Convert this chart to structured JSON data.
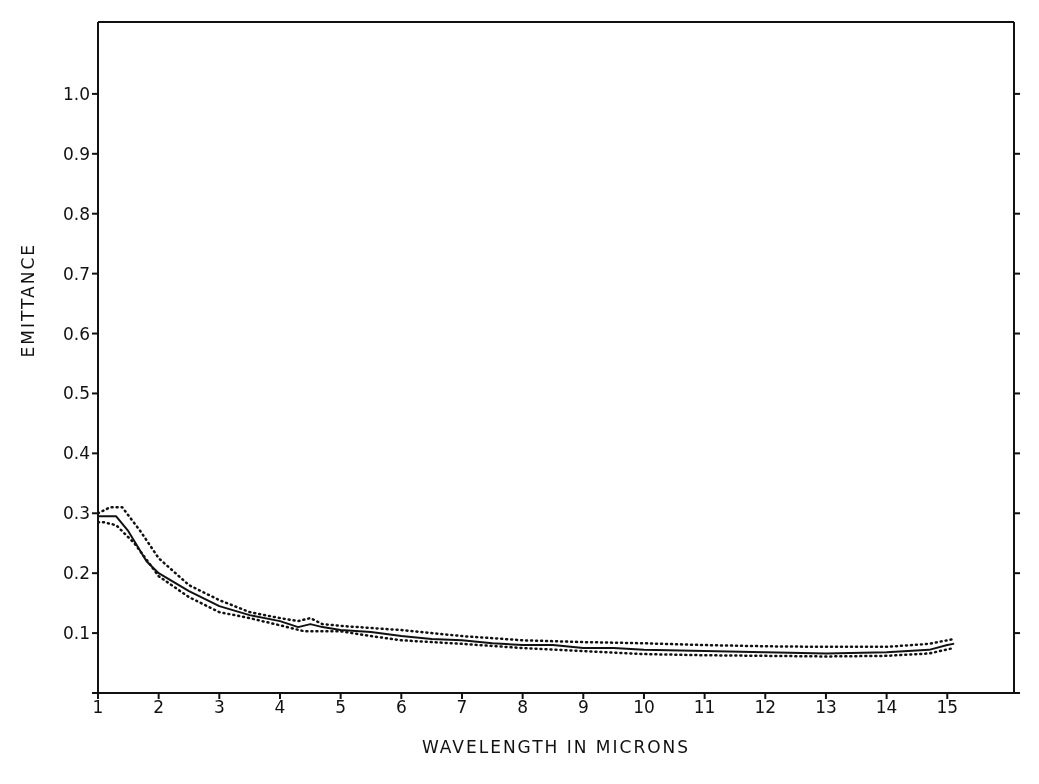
{
  "chart_data": {
    "type": "line",
    "xlabel": "WAVELENGTH IN MICRONS",
    "ylabel": "EMITTANCE",
    "xlim": [
      1,
      16.1
    ],
    "xticks": [
      1,
      2,
      3,
      4,
      5,
      6,
      7,
      8,
      9,
      10,
      11,
      12,
      13,
      14,
      15
    ],
    "ylim": [
      0,
      1.12
    ],
    "yticks": [
      {
        "value": 0,
        "label": null
      },
      {
        "value": 0.1,
        "label": "0.1"
      },
      {
        "value": 0.2,
        "label": "0.2"
      },
      {
        "value": 0.3,
        "label": "0.3"
      },
      {
        "value": 0.4,
        "label": "0.4"
      },
      {
        "value": 0.5,
        "label": "0.5"
      },
      {
        "value": 0.6,
        "label": "0.6"
      },
      {
        "value": 0.7,
        "label": "0.7"
      },
      {
        "value": 0.8,
        "label": "0.8"
      },
      {
        "value": 0.9,
        "label": "0.9"
      },
      {
        "value": 1.0,
        "label": "1.0"
      }
    ],
    "marker": "none",
    "series": [
      {
        "color": "#111111",
        "line_style": "solid",
        "x": [
          1.0,
          1.3,
          1.5,
          1.8,
          2.0,
          2.5,
          3.0,
          3.5,
          4.0,
          4.3,
          4.5,
          4.7,
          5.0,
          5.5,
          6.0,
          6.5,
          7.0,
          7.5,
          8.0,
          8.5,
          9.0,
          9.5,
          10.0,
          11.0,
          12.0,
          13.0,
          14.0,
          14.7,
          15.0,
          15.1
        ],
        "values": [
          0.295,
          0.295,
          0.27,
          0.22,
          0.2,
          0.17,
          0.145,
          0.13,
          0.12,
          0.11,
          0.115,
          0.11,
          0.105,
          0.102,
          0.095,
          0.09,
          0.088,
          0.083,
          0.08,
          0.08,
          0.075,
          0.075,
          0.072,
          0.07,
          0.068,
          0.066,
          0.068,
          0.072,
          0.08,
          0.082
        ]
      },
      {
        "color": "#111111",
        "line_style": "dotted",
        "x": [
          1.0,
          1.2,
          1.4,
          1.7,
          2.0,
          2.5,
          3.0,
          3.5,
          4.0,
          4.3,
          4.5,
          4.7,
          5.0,
          6.0,
          7.0,
          8.0,
          9.0,
          10.0,
          11.0,
          12.0,
          13.0,
          14.0,
          14.7,
          15.1
        ],
        "values": [
          0.3,
          0.31,
          0.31,
          0.27,
          0.225,
          0.18,
          0.155,
          0.135,
          0.125,
          0.12,
          0.125,
          0.115,
          0.112,
          0.105,
          0.095,
          0.088,
          0.085,
          0.083,
          0.08,
          0.078,
          0.077,
          0.077,
          0.082,
          0.09
        ]
      },
      {
        "color": "#111111",
        "line_style": "dotted",
        "x": [
          1.0,
          1.1,
          1.3,
          1.6,
          2.0,
          2.5,
          3.0,
          3.5,
          4.0,
          4.4,
          5.0,
          5.5,
          6.0,
          7.0,
          8.0,
          9.0,
          10.0,
          11.0,
          12.0,
          13.0,
          14.0,
          14.7,
          15.1
        ],
        "values": [
          0.285,
          0.285,
          0.28,
          0.25,
          0.195,
          0.16,
          0.135,
          0.125,
          0.113,
          0.103,
          0.103,
          0.095,
          0.088,
          0.082,
          0.075,
          0.07,
          0.065,
          0.063,
          0.062,
          0.061,
          0.062,
          0.066,
          0.075
        ]
      }
    ]
  }
}
